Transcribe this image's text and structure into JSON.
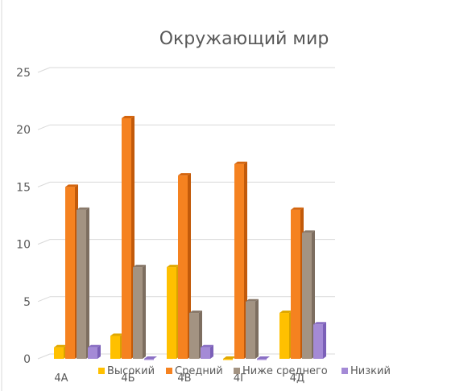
{
  "chart_data": {
    "type": "bar",
    "title": "Окружающий мир",
    "categories": [
      "4А",
      "4Б",
      "4В",
      "4Г",
      "4Д"
    ],
    "series": [
      {
        "name": "Высокий",
        "values": [
          1,
          2,
          8,
          0,
          4
        ],
        "color": "#ffc000",
        "side": "#d9a200",
        "top": "#e0a800"
      },
      {
        "name": "Средний",
        "values": [
          15,
          21,
          16,
          17,
          13
        ],
        "color": "#f58220",
        "side": "#c25a0a",
        "top": "#d4650e"
      },
      {
        "name": "Ниже среднего",
        "values": [
          13,
          8,
          4,
          5,
          11
        ],
        "color": "#a39382",
        "side": "#7d6e60",
        "top": "#8a7a6b"
      },
      {
        "name": "Низкий",
        "values": [
          1,
          0,
          1,
          0,
          3
        ],
        "color": "#a48ad6",
        "side": "#7b60b8",
        "top": "#8a6fc4"
      }
    ],
    "y_ticks": [
      0,
      5,
      10,
      15,
      20,
      25
    ],
    "ylim": [
      0,
      25
    ],
    "grid": true,
    "legend_position": "bottom"
  }
}
